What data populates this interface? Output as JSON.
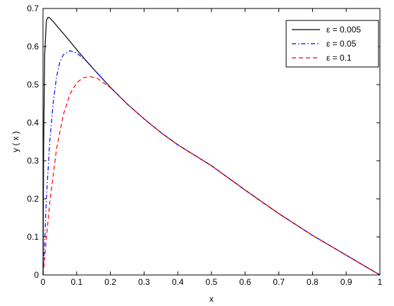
{
  "chart_data": {
    "type": "line",
    "title": "",
    "xlabel": "x",
    "ylabel": "y ( x )",
    "xlim": [
      0,
      1
    ],
    "ylim": [
      0,
      0.7
    ],
    "xticks": [
      "0",
      "0.1",
      "0.2",
      "0.3",
      "0.4",
      "0.5",
      "0.6",
      "0.7",
      "0.8",
      "0.9",
      "1"
    ],
    "yticks": [
      "0",
      "0.1",
      "0.2",
      "0.3",
      "0.4",
      "0.5",
      "0.6",
      "0.7"
    ],
    "grid": false,
    "legend_position": "top-right",
    "series": [
      {
        "name": "ε = 0.005",
        "color": "#000000",
        "line_style": "solid",
        "x": [
          0,
          0.002,
          0.005,
          0.01,
          0.015,
          0.02,
          0.03,
          0.05,
          0.075,
          0.1,
          0.125,
          0.15,
          0.2,
          0.25,
          0.3,
          0.35,
          0.4,
          0.5,
          0.6,
          0.7,
          0.8,
          0.9,
          1.0
        ],
        "y": [
          0.0,
          0.35,
          0.58,
          0.668,
          0.677,
          0.675,
          0.666,
          0.645,
          0.619,
          0.592,
          0.566,
          0.541,
          0.493,
          0.449,
          0.41,
          0.374,
          0.342,
          0.287,
          0.223,
          0.161,
          0.104,
          0.052,
          0.0
        ]
      },
      {
        "name": "ε = 0.05",
        "color": "#0000ff",
        "line_style": "dashdot",
        "x": [
          0,
          0.005,
          0.01,
          0.02,
          0.03,
          0.04,
          0.05,
          0.06,
          0.08,
          0.1,
          0.125,
          0.15,
          0.2,
          0.25,
          0.3,
          0.35,
          0.4,
          0.5,
          0.6,
          0.7,
          0.8,
          0.9,
          1.0
        ],
        "y": [
          0.0,
          0.09,
          0.2,
          0.35,
          0.45,
          0.52,
          0.56,
          0.578,
          0.589,
          0.583,
          0.565,
          0.541,
          0.493,
          0.449,
          0.41,
          0.374,
          0.342,
          0.287,
          0.223,
          0.161,
          0.104,
          0.052,
          0.0
        ]
      },
      {
        "name": "ε = 0.1",
        "color": "#ff0000",
        "line_style": "dashed",
        "x": [
          0,
          0.005,
          0.01,
          0.02,
          0.04,
          0.06,
          0.08,
          0.1,
          0.12,
          0.14,
          0.16,
          0.2,
          0.25,
          0.3,
          0.35,
          0.4,
          0.5,
          0.6,
          0.7,
          0.8,
          0.9,
          1.0
        ],
        "y": [
          0.0,
          0.045,
          0.095,
          0.19,
          0.33,
          0.42,
          0.475,
          0.505,
          0.518,
          0.521,
          0.517,
          0.492,
          0.449,
          0.41,
          0.374,
          0.342,
          0.287,
          0.223,
          0.161,
          0.104,
          0.052,
          0.0
        ]
      }
    ]
  }
}
